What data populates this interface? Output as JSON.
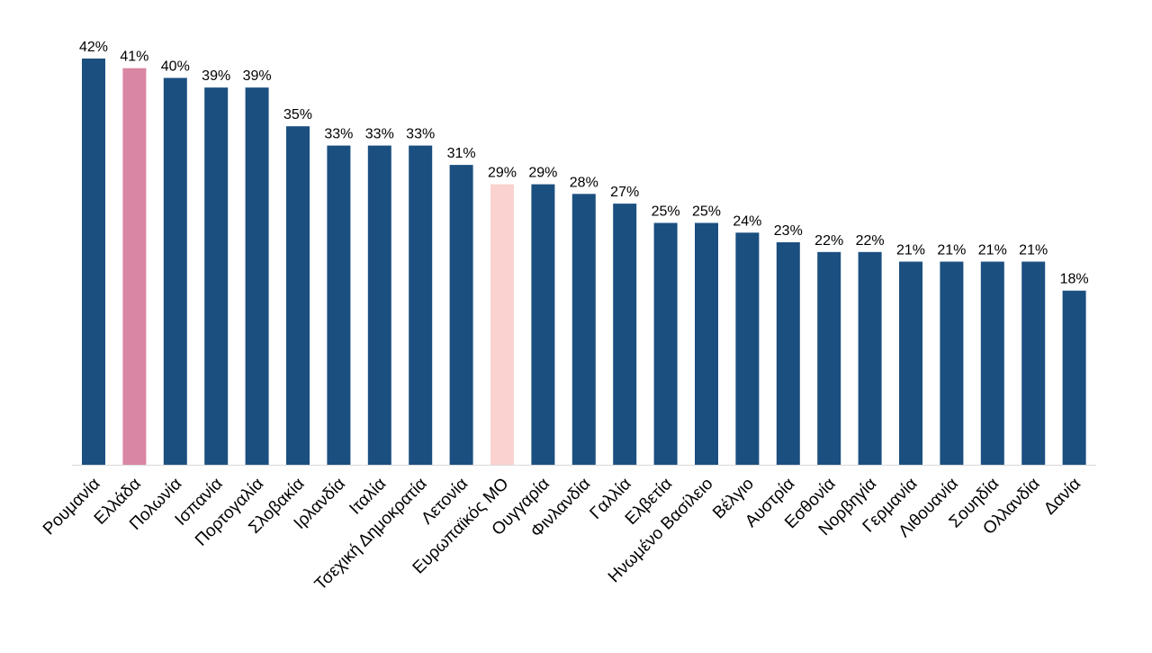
{
  "chart_data": {
    "type": "bar",
    "categories": [
      "Ρουμανία",
      "Ελλάδα",
      "Πολωνία",
      "Ισπανία",
      "Πορτογαλία",
      "Σλοβακία",
      "Ιρλανδία",
      "Ιταλία",
      "Τσεχική Δημοκρατία",
      "Λετονία",
      "Ευρωπαϊκός ΜΟ",
      "Ουγγαρία",
      "Φινλανδία",
      "Γαλλία",
      "Ελβετία",
      "Ηνωμένο Βασίλειο",
      "Βέλγιο",
      "Αυστρία",
      "Εσθονία",
      "Νορβηγία",
      "Γερμανία",
      "Λιθουανία",
      "Σουηδία",
      "Ολλανδία",
      "Δανία"
    ],
    "values": [
      42,
      41,
      40,
      39,
      39,
      35,
      33,
      33,
      33,
      31,
      29,
      29,
      28,
      27,
      25,
      25,
      24,
      23,
      22,
      22,
      21,
      21,
      21,
      21,
      18
    ],
    "value_labels": [
      "42%",
      "41%",
      "40%",
      "39%",
      "39%",
      "35%",
      "33%",
      "33%",
      "33%",
      "31%",
      "29%",
      "29%",
      "28%",
      "27%",
      "25%",
      "25%",
      "24%",
      "23%",
      "22%",
      "22%",
      "21%",
      "21%",
      "21%",
      "21%",
      "18%"
    ],
    "colors": {
      "default": "#1b4f80",
      "highlights": {
        "Ελλάδα": "#d986a4",
        "Ευρωπαϊκός ΜΟ": "#fad2cf"
      },
      "axis": "#d9d9d9"
    },
    "title": "",
    "xlabel": "",
    "ylabel": "",
    "ylim": [
      0,
      42
    ],
    "grid": false,
    "legend": "none"
  }
}
